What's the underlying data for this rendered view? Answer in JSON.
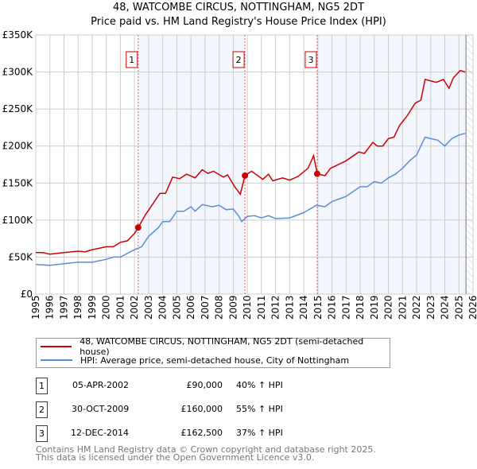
{
  "chart_data": {
    "type": "line",
    "title": "48, WATCOMBE CIRCUS, NOTTINGHAM, NG5 2DT",
    "subtitle": "Price paid vs. HM Land Registry's House Price Index (HPI)",
    "xlim": [
      1995,
      2026
    ],
    "ylim": [
      0,
      350000
    ],
    "y_ticks": [
      {
        "v": 0,
        "label": "£0"
      },
      {
        "v": 50000,
        "label": "£50K"
      },
      {
        "v": 100000,
        "label": "£100K"
      },
      {
        "v": 150000,
        "label": "£150K"
      },
      {
        "v": 200000,
        "label": "£200K"
      },
      {
        "v": 250000,
        "label": "£250K"
      },
      {
        "v": 300000,
        "label": "£300K"
      },
      {
        "v": 350000,
        "label": "£350K"
      }
    ],
    "x_ticks": [
      "1995",
      "1996",
      "1997",
      "1998",
      "1999",
      "2000",
      "2001",
      "2002",
      "2003",
      "2004",
      "2005",
      "2006",
      "2007",
      "2008",
      "2009",
      "2010",
      "2011",
      "2012",
      "2013",
      "2014",
      "2015",
      "2016",
      "2017",
      "2018",
      "2019",
      "2020",
      "2021",
      "2022",
      "2023",
      "2024",
      "2025",
      "2026"
    ],
    "grid": true,
    "data_end": 2025.5,
    "series": [
      {
        "name": "48, WATCOMBE CIRCUS, NOTTINGHAM, NG5 2DT (semi-detached house)",
        "color": "#cc0000",
        "x": [
          1995,
          1995.5,
          1996,
          1997,
          1998,
          1998.5,
          1999,
          2000,
          2000.5,
          2001,
          2001.5,
          2002,
          2002.26,
          2002.8,
          2003.3,
          2003.8,
          2004.2,
          2004.7,
          2005.2,
          2005.7,
          2006.3,
          2006.8,
          2007.2,
          2007.6,
          2008.3,
          2008.6,
          2009.1,
          2009.5,
          2009.83,
          2010.3,
          2011.1,
          2011.5,
          2011.8,
          2012.5,
          2013,
          2013.6,
          2014.3,
          2014.7,
          2014.95,
          2015.5,
          2015.9,
          2017,
          2017.9,
          2018.3,
          2018.9,
          2019.2,
          2019.6,
          2020,
          2020.4,
          2020.8,
          2021.3,
          2021.9,
          2022.3,
          2022.6,
          2023.4,
          2023.9,
          2024.3,
          2024.6,
          2025.1,
          2025.45
        ],
        "y": [
          56000,
          56000,
          54000,
          56000,
          58000,
          57000,
          60000,
          64000,
          64000,
          70000,
          72000,
          82000,
          90000,
          108000,
          122000,
          136000,
          136000,
          158000,
          156000,
          162000,
          157000,
          168000,
          163000,
          166000,
          158000,
          161000,
          145000,
          135000,
          160000,
          166000,
          155000,
          162000,
          153000,
          157000,
          154000,
          159000,
          170000,
          187000,
          162500,
          160000,
          170000,
          180000,
          192000,
          190000,
          205000,
          200000,
          200000,
          210000,
          212000,
          228000,
          240000,
          258000,
          262000,
          290000,
          286000,
          290000,
          278000,
          292000,
          302000,
          300000
        ]
      },
      {
        "name": "HPI: Average price, semi-detached house, City of Nottingham",
        "color": "#5b8fd4",
        "x": [
          1995,
          1996,
          1997,
          1998,
          1999,
          2000,
          2000.5,
          2001,
          2002,
          2002.5,
          2003,
          2003.7,
          2004,
          2004.5,
          2005,
          2005.5,
          2006,
          2006.3,
          2006.8,
          2007.5,
          2008,
          2008.5,
          2009,
          2009.4,
          2009.6,
          2010,
          2010.5,
          2011,
          2011.5,
          2012,
          2013,
          2014,
          2014.9,
          2015.5,
          2016,
          2017,
          2018,
          2018.5,
          2019,
          2019.5,
          2020,
          2020.5,
          2021,
          2021.5,
          2022,
          2022.6,
          2023,
          2023.5,
          2024,
          2024.5,
          2025,
          2025.45
        ],
        "y": [
          40000,
          39000,
          41000,
          43000,
          43000,
          47000,
          50000,
          50000,
          60000,
          64000,
          78000,
          90000,
          98000,
          98000,
          112000,
          112000,
          118000,
          112000,
          121000,
          118000,
          120000,
          114000,
          115000,
          105000,
          98000,
          105000,
          106000,
          103000,
          106000,
          102000,
          103000,
          110000,
          120000,
          118000,
          125000,
          132000,
          145000,
          145000,
          152000,
          150000,
          157000,
          162000,
          170000,
          180000,
          188000,
          212000,
          210000,
          208000,
          200000,
          210000,
          215000,
          217000
        ]
      }
    ],
    "sales": [
      {
        "n": "1",
        "x": 2002.26,
        "price": 90000,
        "date": "05-APR-2002",
        "price_label": "£90,000",
        "hpi": "40% ↑ HPI"
      },
      {
        "n": "2",
        "x": 2009.83,
        "price": 160000,
        "date": "30-OCT-2009",
        "price_label": "£160,000",
        "hpi": "55% ↑ HPI"
      },
      {
        "n": "3",
        "x": 2014.95,
        "price": 162500,
        "date": "12-DEC-2014",
        "price_label": "£162,500",
        "hpi": "37% ↑ HPI"
      }
    ]
  },
  "footer": {
    "line1": "Contains HM Land Registry data © Crown copyright and database right 2025.",
    "line2": "This data is licensed under the Open Government Licence v3.0."
  }
}
